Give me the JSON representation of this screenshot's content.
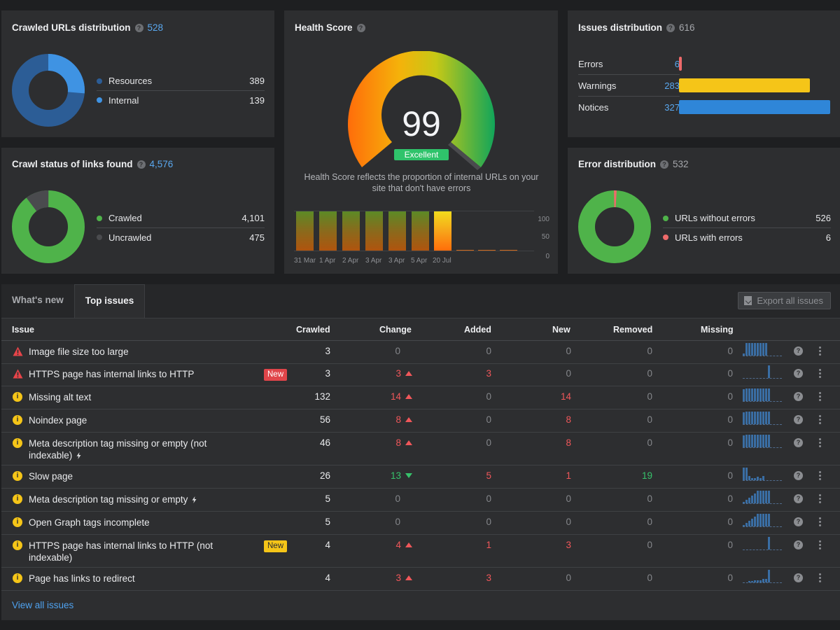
{
  "crawled_urls": {
    "title": "Crawled URLs distribution",
    "count": "528",
    "legend": [
      {
        "label": "Resources",
        "value": "389",
        "color": "#2c5d96"
      },
      {
        "label": "Internal",
        "value": "139",
        "color": "#3f93e3"
      }
    ]
  },
  "crawl_status": {
    "title": "Crawl status of links found",
    "count": "4,576",
    "legend": [
      {
        "label": "Crawled",
        "value": "4,101",
        "color": "#4fb34a"
      },
      {
        "label": "Uncrawled",
        "value": "475",
        "color": "#4a4b4e"
      }
    ]
  },
  "health": {
    "title": "Health Score",
    "score": "99",
    "badge": "Excellent",
    "description": "Health Score reflects the proportion of internal URLs on your site that don't have errors",
    "y_ticks": [
      "100",
      "50",
      "0"
    ],
    "x_labels": [
      "31 Mar",
      "1 Apr",
      "2 Apr",
      "3 Apr",
      "3 Apr",
      "5 Apr",
      "20 Jul"
    ]
  },
  "issues_distribution": {
    "title": "Issues distribution",
    "count": "616",
    "rows": [
      {
        "label": "Errors",
        "value": "6",
        "color": "#ee6a6a",
        "fraction": 0.018
      },
      {
        "label": "Warnings",
        "value": "283",
        "color": "#f5c518",
        "fraction": 0.866
      },
      {
        "label": "Notices",
        "value": "327",
        "color": "#2f86d8",
        "fraction": 1.0
      }
    ]
  },
  "error_distribution": {
    "title": "Error distribution",
    "count": "532",
    "legend": [
      {
        "label": "URLs without errors",
        "value": "526",
        "color": "#4fb34a"
      },
      {
        "label": "URLs with errors",
        "value": "6",
        "color": "#ee6a6a"
      }
    ]
  },
  "table": {
    "tabs": [
      "What's new",
      "Top issues"
    ],
    "export_label": "Export all issues",
    "headers": {
      "issue": "Issue",
      "crawled": "Crawled",
      "change": "Change",
      "added": "Added",
      "new": "New",
      "removed": "Removed",
      "missing": "Missing"
    },
    "view_all": "View all issues",
    "rows": [
      {
        "issue": "Image file size too large",
        "type": "error",
        "crawled": "3",
        "change": "0",
        "added": "0",
        "new": "0",
        "removed": "0",
        "missing": "0"
      },
      {
        "issue": "HTTPS page has internal links to HTTP",
        "type": "error",
        "badge": "New",
        "crawled": "3",
        "change": "3",
        "added": "3",
        "new": "0",
        "removed": "0",
        "missing": "0"
      },
      {
        "issue": "Missing alt text",
        "type": "warning",
        "crawled": "132",
        "change": "14",
        "added": "0",
        "new": "14",
        "removed": "0",
        "missing": "0"
      },
      {
        "issue": "Noindex page",
        "type": "warning",
        "crawled": "56",
        "change": "8",
        "added": "0",
        "new": "8",
        "removed": "0",
        "missing": "0"
      },
      {
        "issue": "Meta description tag missing or empty (not indexable)",
        "type": "warning",
        "crawled": "46",
        "change": "8",
        "added": "0",
        "new": "8",
        "removed": "0",
        "missing": "0"
      },
      {
        "issue": "Slow page",
        "type": "warning",
        "crawled": "26",
        "change": "13",
        "added": "5",
        "new": "1",
        "removed": "19",
        "missing": "0"
      },
      {
        "issue": "Meta description tag missing or empty",
        "type": "warning",
        "crawled": "5",
        "change": "0",
        "added": "0",
        "new": "0",
        "removed": "0",
        "missing": "0"
      },
      {
        "issue": "Open Graph tags incomplete",
        "type": "warning",
        "crawled": "5",
        "change": "0",
        "added": "0",
        "new": "0",
        "removed": "0",
        "missing": "0"
      },
      {
        "issue": "HTTPS page has internal links to HTTP (not indexable)",
        "type": "warning",
        "badge": "New",
        "crawled": "4",
        "change": "4",
        "added": "1",
        "new": "3",
        "removed": "0",
        "missing": "0"
      },
      {
        "issue": "Page has links to redirect",
        "type": "warning",
        "crawled": "4",
        "change": "3",
        "added": "3",
        "new": "0",
        "removed": "0",
        "missing": "0"
      }
    ]
  }
}
